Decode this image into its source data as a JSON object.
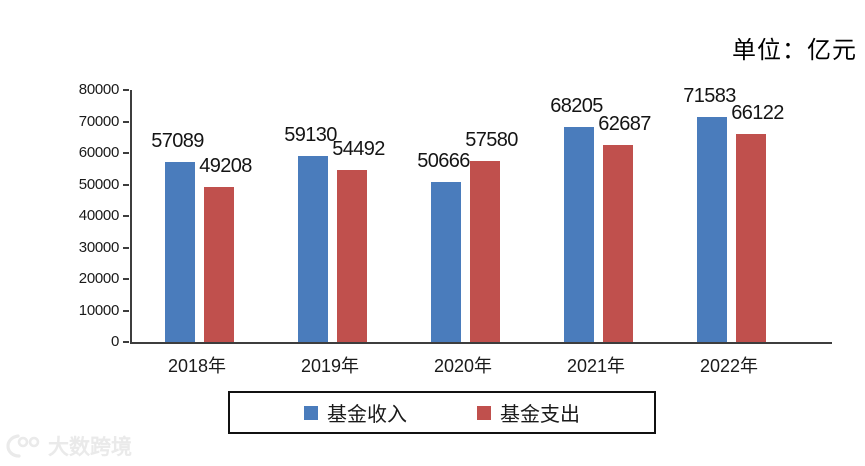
{
  "unit_label": "单位：亿元",
  "watermark": {
    "logo": "100",
    "brand": "大数跨境"
  },
  "chart_data": {
    "type": "bar",
    "title": "",
    "unit": "亿元",
    "categories": [
      "2018年",
      "2019年",
      "2020年",
      "2021年",
      "2022年"
    ],
    "series": [
      {
        "name": "基金收入",
        "color": "#4a7cbc",
        "values": [
          57089,
          59130,
          50666,
          68205,
          71583
        ]
      },
      {
        "name": "基金支出",
        "color": "#c0504d",
        "values": [
          49208,
          54492,
          57580,
          62687,
          66122
        ]
      }
    ],
    "ylim": [
      0,
      80000
    ],
    "ytick_step": 10000,
    "grid": false,
    "value_labels": true,
    "legend_position": "bottom"
  }
}
